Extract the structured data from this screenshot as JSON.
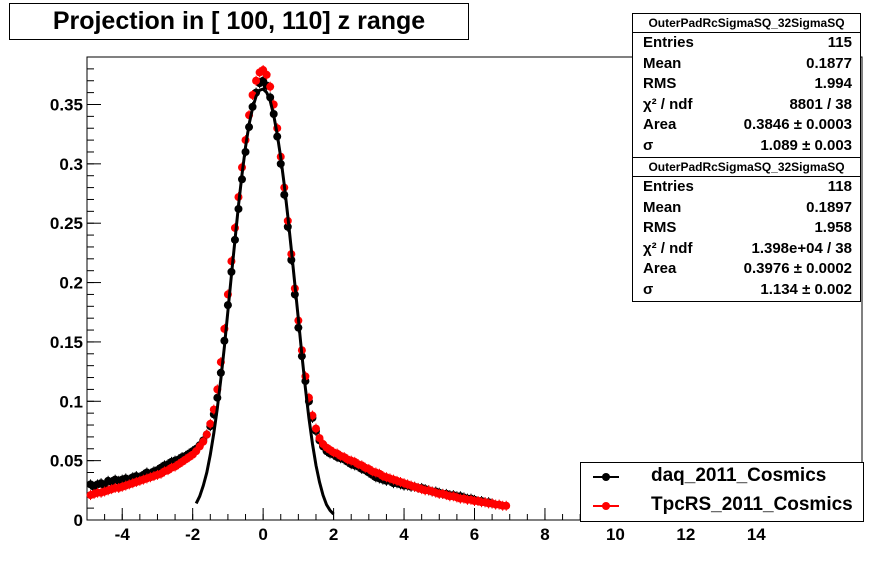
{
  "title": "Projection in [ 100, 110] z range",
  "stats_boxes": [
    {
      "header": "OuterPadRcSigmaSQ_32SigmaSQ",
      "rows": [
        {
          "label": "Entries",
          "value": "115"
        },
        {
          "label": "Mean",
          "value": "0.1877"
        },
        {
          "label": "RMS",
          "value": "1.994"
        },
        {
          "label": "χ² / ndf",
          "value": "8801 / 38"
        },
        {
          "label": "Area",
          "value": "0.3846 ± 0.0003"
        },
        {
          "label": "σ",
          "value": "1.089 ± 0.003"
        }
      ]
    },
    {
      "header": "OuterPadRcSigmaSQ_32SigmaSQ",
      "rows": [
        {
          "label": "Entries",
          "value": "118"
        },
        {
          "label": "Mean",
          "value": "0.1897"
        },
        {
          "label": "RMS",
          "value": "1.958"
        },
        {
          "label": "χ² / ndf",
          "value": "1.398e+04 / 38"
        },
        {
          "label": "Area",
          "value": "0.3976 ± 0.0002"
        },
        {
          "label": "σ",
          "value": "1.134 ± 0.002"
        }
      ]
    }
  ],
  "legend": [
    {
      "label": "daq_2011_Cosmics",
      "color": "#000000"
    },
    {
      "label": "TpcRS_2011_Cosmics",
      "color": "#ff0000"
    }
  ],
  "chart_data": {
    "type": "scatter",
    "title": "Projection in [ 100, 110] z range",
    "xlim": [
      -5,
      17
    ],
    "ylim": [
      0,
      0.39
    ],
    "xticks": [
      -4,
      -2,
      0,
      2,
      4,
      6,
      8,
      10,
      12,
      14
    ],
    "yticks": [
      0,
      0.05,
      0.1,
      0.15,
      0.2,
      0.25,
      0.3,
      0.35
    ],
    "ytick_labels": [
      "0",
      "0.05",
      "0.1",
      "0.15",
      "0.2",
      "0.25",
      "0.3",
      "0.35"
    ],
    "grid": true,
    "legend_position": "bottom-right",
    "series": [
      {
        "name": "daq_2011_Cosmics",
        "color": "#000000",
        "x": [
          -4.9,
          -4.8,
          -4.7,
          -4.6,
          -4.5,
          -4.4,
          -4.3,
          -4.2,
          -4.1,
          -4,
          -3.9,
          -3.8,
          -3.7,
          -3.6,
          -3.5,
          -3.4,
          -3.3,
          -3.2,
          -3.1,
          -3,
          -2.9,
          -2.8,
          -2.7,
          -2.6,
          -2.5,
          -2.4,
          -2.3,
          -2.2,
          -2.1,
          -2,
          -1.9,
          -1.8,
          -1.7,
          -1.6,
          -1.5,
          -1.4,
          -1.3,
          -1.2,
          -1.1,
          -1,
          -0.9,
          -0.8,
          -0.7,
          -0.6,
          -0.5,
          -0.4,
          -0.3,
          -0.2,
          -0.1,
          0,
          0.1,
          0.2,
          0.3,
          0.4,
          0.5,
          0.6,
          0.7,
          0.8,
          0.9,
          1,
          1.1,
          1.2,
          1.3,
          1.4,
          1.5,
          1.6,
          1.7,
          1.8,
          1.9,
          2,
          2.1,
          2.2,
          2.3,
          2.4,
          2.5,
          2.6,
          2.7,
          2.8,
          2.9,
          3,
          3.1,
          3.2,
          3.3,
          3.4,
          3.5,
          3.6,
          3.7,
          3.8,
          3.9,
          4,
          4.1,
          4.2,
          4.3,
          4.4,
          4.5,
          4.6,
          4.7,
          4.8,
          4.9,
          5,
          5.1,
          5.2,
          5.3,
          5.4,
          5.5,
          5.6,
          5.7,
          5.8,
          5.9,
          6,
          6.1,
          6.2,
          6.3,
          6.4,
          6.5
        ],
        "y": [
          0.03,
          0.028,
          0.03,
          0.031,
          0.029,
          0.033,
          0.032,
          0.034,
          0.033,
          0.034,
          0.035,
          0.034,
          0.036,
          0.037,
          0.036,
          0.038,
          0.04,
          0.039,
          0.041,
          0.042,
          0.044,
          0.046,
          0.047,
          0.049,
          0.05,
          0.051,
          0.053,
          0.054,
          0.056,
          0.058,
          0.06,
          0.063,
          0.067,
          0.072,
          0.079,
          0.089,
          0.103,
          0.124,
          0.151,
          0.181,
          0.209,
          0.236,
          0.262,
          0.287,
          0.31,
          0.331,
          0.348,
          0.36,
          0.368,
          0.37,
          0.366,
          0.356,
          0.342,
          0.323,
          0.3,
          0.274,
          0.247,
          0.219,
          0.19,
          0.162,
          0.138,
          0.117,
          0.1,
          0.086,
          0.075,
          0.067,
          0.062,
          0.058,
          0.056,
          0.055,
          0.053,
          0.052,
          0.051,
          0.049,
          0.047,
          0.046,
          0.045,
          0.043,
          0.042,
          0.04,
          0.038,
          0.036,
          0.035,
          0.034,
          0.033,
          0.033,
          0.031,
          0.031,
          0.03,
          0.029,
          0.029,
          0.028,
          0.028,
          0.027,
          0.027,
          0.026,
          0.025,
          0.024,
          0.024,
          0.023,
          0.022,
          0.022,
          0.021,
          0.021,
          0.02,
          0.02,
          0.019,
          0.018,
          0.018,
          0.017,
          0.016,
          0.016,
          0.015,
          0.015,
          0.014
        ]
      },
      {
        "name": "TpcRS_2011_Cosmics",
        "color": "#ff0000",
        "x": [
          -4.9,
          -4.8,
          -4.7,
          -4.6,
          -4.5,
          -4.4,
          -4.3,
          -4.2,
          -4.1,
          -4,
          -3.9,
          -3.8,
          -3.7,
          -3.6,
          -3.5,
          -3.4,
          -3.3,
          -3.2,
          -3.1,
          -3,
          -2.9,
          -2.8,
          -2.7,
          -2.6,
          -2.5,
          -2.4,
          -2.3,
          -2.2,
          -2.1,
          -2,
          -1.9,
          -1.8,
          -1.7,
          -1.6,
          -1.5,
          -1.4,
          -1.3,
          -1.2,
          -1.1,
          -1,
          -0.9,
          -0.8,
          -0.7,
          -0.6,
          -0.5,
          -0.4,
          -0.3,
          -0.2,
          -0.1,
          0,
          0.1,
          0.2,
          0.3,
          0.4,
          0.5,
          0.6,
          0.7,
          0.8,
          0.9,
          1,
          1.1,
          1.2,
          1.3,
          1.4,
          1.5,
          1.6,
          1.7,
          1.8,
          1.9,
          2,
          2.1,
          2.2,
          2.3,
          2.4,
          2.5,
          2.6,
          2.7,
          2.8,
          2.9,
          3,
          3.1,
          3.2,
          3.3,
          3.4,
          3.5,
          3.6,
          3.7,
          3.8,
          3.9,
          4,
          4.1,
          4.2,
          4.3,
          4.4,
          4.5,
          4.6,
          4.7,
          4.8,
          4.9,
          5,
          5.1,
          5.2,
          5.3,
          5.4,
          5.5,
          5.6,
          5.7,
          5.8,
          5.9,
          6,
          6.1,
          6.2,
          6.3,
          6.4,
          6.5,
          6.6,
          6.7,
          6.8,
          6.9
        ],
        "y": [
          0.021,
          0.022,
          0.023,
          0.023,
          0.024,
          0.025,
          0.026,
          0.027,
          0.027,
          0.028,
          0.029,
          0.03,
          0.031,
          0.032,
          0.033,
          0.034,
          0.035,
          0.036,
          0.037,
          0.038,
          0.039,
          0.041,
          0.042,
          0.044,
          0.045,
          0.047,
          0.049,
          0.051,
          0.053,
          0.055,
          0.058,
          0.062,
          0.066,
          0.072,
          0.081,
          0.093,
          0.11,
          0.133,
          0.161,
          0.19,
          0.218,
          0.246,
          0.272,
          0.297,
          0.32,
          0.341,
          0.358,
          0.37,
          0.377,
          0.379,
          0.375,
          0.365,
          0.35,
          0.33,
          0.306,
          0.28,
          0.252,
          0.224,
          0.195,
          0.168,
          0.143,
          0.121,
          0.103,
          0.088,
          0.077,
          0.069,
          0.064,
          0.061,
          0.059,
          0.057,
          0.056,
          0.054,
          0.053,
          0.051,
          0.05,
          0.049,
          0.047,
          0.046,
          0.044,
          0.043,
          0.041,
          0.04,
          0.039,
          0.037,
          0.036,
          0.035,
          0.034,
          0.033,
          0.032,
          0.031,
          0.03,
          0.029,
          0.028,
          0.027,
          0.026,
          0.025,
          0.025,
          0.024,
          0.023,
          0.022,
          0.022,
          0.021,
          0.02,
          0.02,
          0.019,
          0.018,
          0.018,
          0.017,
          0.017,
          0.016,
          0.016,
          0.015,
          0.015,
          0.014,
          0.014,
          0.013,
          0.013,
          0.012,
          0.012
        ]
      },
      {
        "name": "daq_2011_Cosmics fit",
        "type": "line",
        "color": "#000000",
        "x": [
          -1.9,
          -1.8,
          -1.7,
          -1.6,
          -1.5,
          -1.4,
          -1.3,
          -1.2,
          -1.1,
          -1,
          -0.9,
          -0.8,
          -0.7,
          -0.6,
          -0.5,
          -0.4,
          -0.3,
          -0.2,
          -0.1,
          0,
          0.1,
          0.2,
          0.3,
          0.4,
          0.5,
          0.6,
          0.7,
          0.8,
          0.9,
          1,
          1.1,
          1.2,
          1.3,
          1.4,
          1.5,
          1.6,
          1.7,
          1.8,
          1.9,
          2
        ],
        "y": [
          0.014,
          0.02,
          0.029,
          0.04,
          0.055,
          0.073,
          0.094,
          0.119,
          0.146,
          0.176,
          0.206,
          0.236,
          0.265,
          0.291,
          0.314,
          0.333,
          0.347,
          0.357,
          0.362,
          0.363,
          0.36,
          0.353,
          0.341,
          0.325,
          0.305,
          0.282,
          0.256,
          0.228,
          0.199,
          0.169,
          0.139,
          0.111,
          0.086,
          0.064,
          0.046,
          0.032,
          0.021,
          0.013,
          0.008,
          0.005
        ]
      }
    ]
  }
}
